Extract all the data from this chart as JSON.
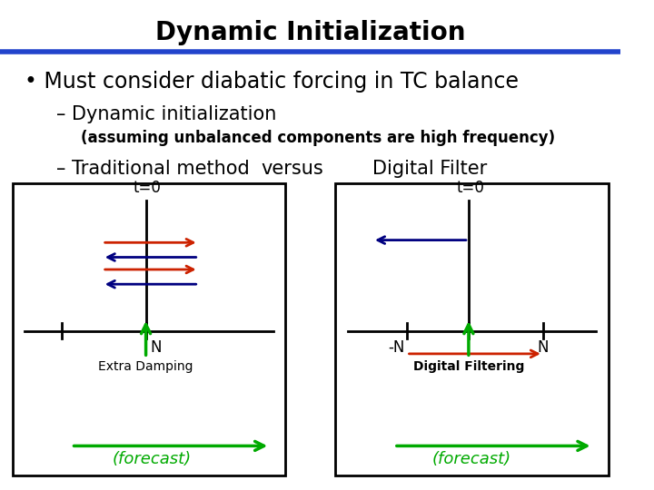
{
  "title": "Dynamic Initialization",
  "title_fontsize": 20,
  "title_fontweight": "bold",
  "bg_color": "#ffffff",
  "blue_bar_color": "#2244cc",
  "bullet_text": "Must consider diabatic forcing in TC balance",
  "bullet_fontsize": 17,
  "sub1_text": "Dynamic initialization",
  "sub1_fontsize": 15,
  "sub2_text": "(assuming unbalanced components are high frequency)",
  "sub2_fontsize": 12,
  "sub3_text": "Traditional method",
  "sub3_fontsize": 15,
  "versus_text": "versus",
  "versus_fontsize": 15,
  "digital_filter_text": "Digital Filter",
  "digital_filter_fontsize": 15,
  "green_color": "#00aa00",
  "red_color": "#cc2200",
  "navy_color": "#000080",
  "black_color": "#000000"
}
